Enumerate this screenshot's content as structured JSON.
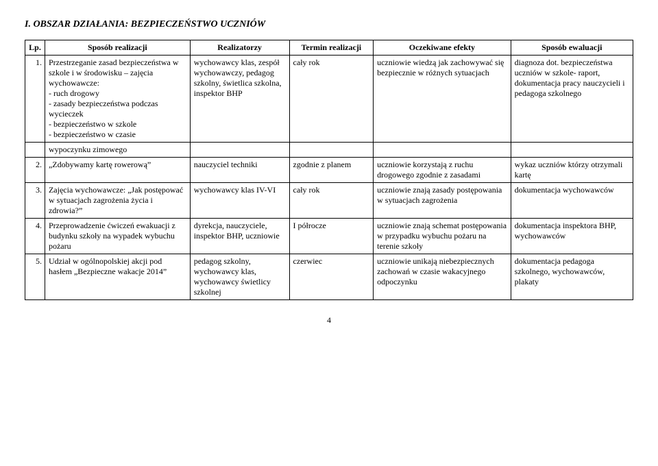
{
  "heading": "I. OBSZAR DZIAŁANIA: BEZPIECZEŃSTWO UCZNIÓW",
  "columns": {
    "lp": "Lp.",
    "sposob": "Sposób realizacji",
    "realizatorzy": "Realizatorzy",
    "termin": "Termin realizacji",
    "efekty": "Oczekiwane efekty",
    "ewaluacji": "Sposób ewaluacji"
  },
  "rows": [
    {
      "lp": "1.",
      "sposob": "Przestrzeganie zasad bezpieczeństwa w szkole i w środowisku – zajęcia wychowawcze:\n- ruch drogowy\n- zasady bezpieczeństwa podczas wycieczek\n- bezpieczeństwo w szkole\n- bezpieczeństwo w czasie",
      "sposob2": "wypoczynku zimowego",
      "realizatorzy": "wychowawcy klas, zespół wychowawczy, pedagog szkolny, świetlica szkolna, inspektor BHP",
      "termin": "cały rok",
      "efekty": "uczniowie wiedzą jak zachowywać się bezpiecznie w różnych sytuacjach",
      "ewaluacji": "diagnoza dot. bezpieczeństwa uczniów w szkole- raport, dokumentacja pracy nauczycieli i pedagoga szkolnego"
    },
    {
      "lp": "2.",
      "sposob": "„Zdobywamy kartę rowerową”",
      "realizatorzy": "nauczyciel techniki",
      "termin": "zgodnie z planem",
      "efekty": "uczniowie korzystają z ruchu drogowego zgodnie z zasadami",
      "ewaluacji": "wykaz uczniów którzy otrzymali kartę"
    },
    {
      "lp": "3.",
      "sposob": "Zajęcia wychowawcze: „Jak postępować w sytuacjach zagrożenia życia i zdrowia?”",
      "realizatorzy": "wychowawcy klas IV-VI",
      "termin": "cały rok",
      "efekty": "uczniowie znają zasady postępowania w sytuacjach zagrożenia",
      "ewaluacji": "dokumentacja wychowawców"
    },
    {
      "lp": "4.",
      "sposob": "Przeprowadzenie ćwiczeń ewakuacji z budynku szkoły na wypadek wybuchu pożaru",
      "realizatorzy": "dyrekcja, nauczyciele, inspektor BHP, uczniowie",
      "termin": "I półrocze",
      "efekty": "uczniowie znają schemat postępowania w przypadku wybuchu pożaru na terenie szkoły",
      "ewaluacji": "dokumentacja inspektora BHP, wychowawców"
    },
    {
      "lp": "5.",
      "sposob": "Udział w ogólnopolskiej akcji pod hasłem „Bezpieczne wakacje 2014”",
      "realizatorzy": "pedagog szkolny, wychowawcy klas, wychowawcy świetlicy szkolnej",
      "termin": "czerwiec",
      "efekty": "uczniowie unikają niebezpiecznych zachowań w czasie wakacyjnego odpoczynku",
      "ewaluacji": "dokumentacja pedagoga szkolnego, wychowawców, plakaty"
    }
  ],
  "page_number": "4"
}
